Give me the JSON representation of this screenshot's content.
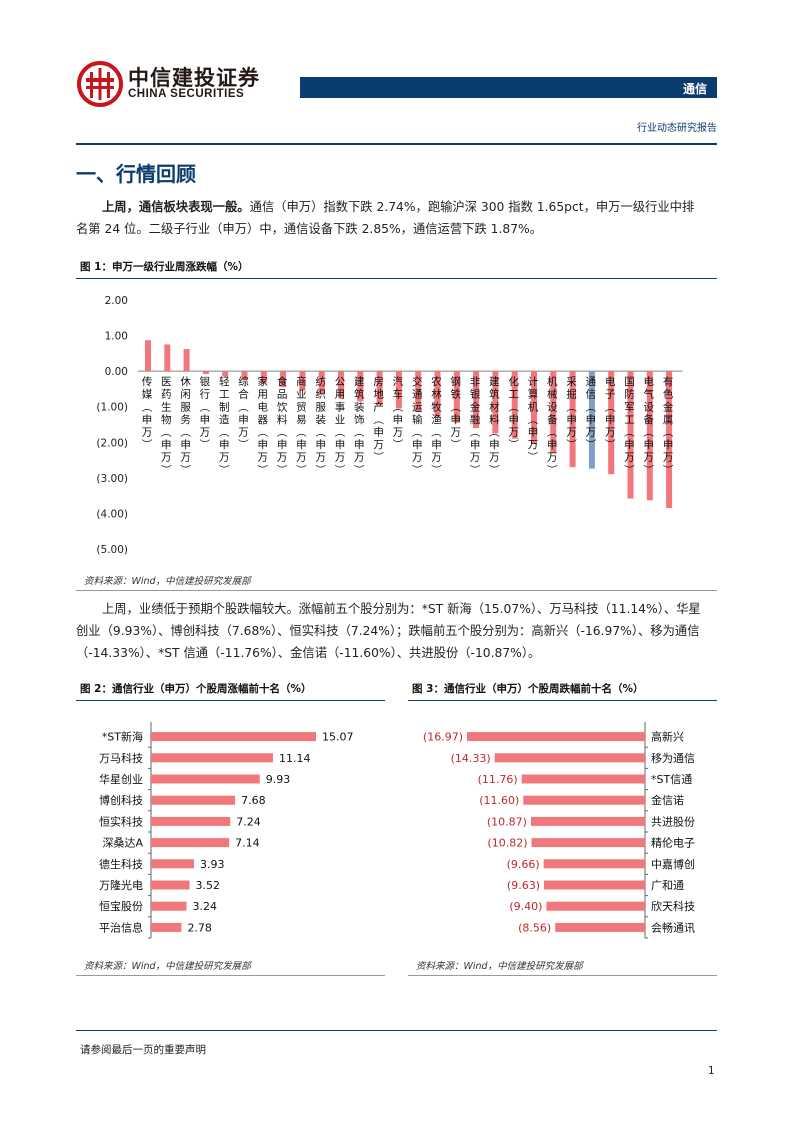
{
  "header": {
    "company_cn": "中信建投证券",
    "company_en": "CHINA SECURITIES",
    "sector": "通信",
    "report_type": "行业动态研究报告"
  },
  "section": {
    "title": "一、行情回顾"
  },
  "para1": {
    "bold": "上周，通信板块表现一般。",
    "line1_rest": "通信（申万）指数下跌 2.74%，跑输沪深 300 指数 1.65pct，申万一级行业中排",
    "line2": "名第 24 位。二级子行业（申万）中，通信设备下跌 2.85%，通信运营下跌 1.87%。"
  },
  "para2": {
    "line1": "上周，业绩低于预期个股跌幅较大。涨幅前五个股分别为：*ST 新海（15.07%）、万马科技（11.14%）、华星",
    "line2": "创业（9.93%）、博创科技（7.68%）、恒实科技（7.24%）；跌幅前五个股分别为：高新兴（-16.97%）、移为通信",
    "line3": "（-14.33%）、*ST 信通（-11.76%）、金信诺（-11.60%）、共进股份（-10.87%）。"
  },
  "figures": {
    "fig1_title": "图 1：申万一级行业周涨跌幅（%）",
    "fig2_title": "图 2：通信行业（申万）个股周涨幅前十名（%）",
    "fig3_title": "图 3：通信行业（申万）个股周跌幅前十名（%）",
    "source": "资料来源：Wind，中信建投研究发展部"
  },
  "chart_data": [
    {
      "type": "bar",
      "title": "图 1：申万一级行业周涨跌幅（%）",
      "categories": [
        "传媒(申万)",
        "医药生物(申万)",
        "休闲服务(申万)",
        "银行(申万)",
        "轻工制造(申万)",
        "综合(申万)",
        "家用电器(申万)",
        "食品饮料(申万)",
        "商业贸易(申万)",
        "纺织服装(申万)",
        "公用事业(申万)",
        "建筑装饰(申万)",
        "房地产(申万)",
        "汽车(申万)",
        "交通运输(申万)",
        "农林牧渔(申万)",
        "钢铁(申万)",
        "非银金融(申万)",
        "建筑材料(申万)",
        "化工(申万)",
        "计算机(申万)",
        "机械设备(申万)",
        "采掘(申万)",
        "通信(申万)",
        "电子(申万)",
        "国防军工(申万)",
        "电气设备(申万)",
        "有色金属(申万)"
      ],
      "values": [
        0.87,
        0.75,
        0.62,
        -0.08,
        -0.15,
        -0.25,
        -0.35,
        -0.45,
        -0.55,
        -0.65,
        -0.75,
        -0.85,
        -0.95,
        -1.05,
        -1.15,
        -1.3,
        -1.45,
        -1.6,
        -1.75,
        -1.9,
        -2.05,
        -2.3,
        -2.7,
        -2.74,
        -2.9,
        -3.58,
        -3.63,
        -3.85
      ],
      "highlight": "通信(申万)",
      "yticks": [
        "2.00",
        "1.00",
        "0.00",
        "(1.00)",
        "(2.00)",
        "(3.00)",
        "(4.00)",
        "(5.00)"
      ],
      "ylim": [
        -5,
        2
      ],
      "bar_color": "#f0777b",
      "highlight_color": "#7f9fc4"
    },
    {
      "type": "bar",
      "orientation": "horizontal",
      "title": "图 2：通信行业（申万）个股周涨幅前十名（%）",
      "categories": [
        "*ST新海",
        "万马科技",
        "华星创业",
        "博创科技",
        "恒实科技",
        "深桑达A",
        "德生科技",
        "万隆光电",
        "恒宝股份",
        "平治信息"
      ],
      "values": [
        15.07,
        11.14,
        9.93,
        7.68,
        7.24,
        7.14,
        3.93,
        3.52,
        3.24,
        2.78
      ],
      "labels": [
        "15.07",
        "11.14",
        "9.93",
        "7.68",
        "7.24",
        "7.14",
        "3.93",
        "3.52",
        "3.24",
        "2.78"
      ],
      "bar_color": "#f0777b"
    },
    {
      "type": "bar",
      "orientation": "horizontal",
      "title": "图 3：通信行业（申万）个股周跌幅前十名（%）",
      "categories": [
        "高新兴",
        "移为通信",
        "*ST信通",
        "金信诺",
        "共进股份",
        "精伦电子",
        "中嘉博创",
        "广和通",
        "欣天科技",
        "会畅通讯"
      ],
      "values": [
        -16.97,
        -14.33,
        -11.76,
        -11.6,
        -10.87,
        -10.82,
        -9.66,
        -9.63,
        -9.4,
        -8.56
      ],
      "labels": [
        "(16.97)",
        "(14.33)",
        "(11.76)",
        "(11.60)",
        "(10.87)",
        "(10.82)",
        "(9.66)",
        "(9.63)",
        "(9.40)",
        "(8.56)"
      ],
      "bar_color": "#f0777b",
      "label_color": "#c0272d"
    }
  ],
  "footer": {
    "disclaimer": "请参阅最后一页的重要声明",
    "page": "1"
  }
}
